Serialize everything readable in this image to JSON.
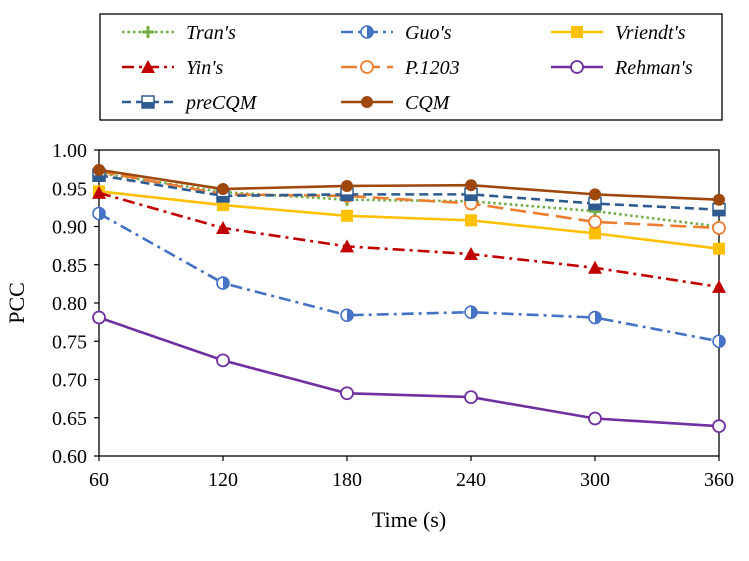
{
  "chart_data": {
    "type": "line",
    "xlabel": "Time (s)",
    "ylabel": "PCC",
    "xlim": [
      60,
      360
    ],
    "ylim": [
      0.6,
      1.0
    ],
    "x": [
      60,
      120,
      180,
      240,
      300,
      360
    ],
    "x_ticks": [
      "60",
      "120",
      "180",
      "240",
      "300",
      "360"
    ],
    "y_ticks": [
      "0.60",
      "0.65",
      "0.70",
      "0.75",
      "0.80",
      "0.85",
      "0.90",
      "0.95",
      "1.00"
    ],
    "grid": false,
    "legend_position": "top",
    "series": [
      {
        "name": "Tran's",
        "color": "#70AD47",
        "dash": "dot",
        "marker": "plus",
        "values": [
          0.97,
          0.945,
          0.935,
          0.933,
          0.92,
          0.9
        ]
      },
      {
        "name": "Guo's",
        "color": "#4472C4",
        "dash": "dashdot",
        "marker": "half-circle",
        "values": [
          0.917,
          0.826,
          0.784,
          0.788,
          0.781,
          0.75
        ]
      },
      {
        "name": "Vriendt's",
        "color": "#FFC000",
        "dash": "solid",
        "marker": "square",
        "values": [
          0.946,
          0.928,
          0.914,
          0.908,
          0.891,
          0.871
        ]
      },
      {
        "name": "Yin's",
        "color": "#C00000",
        "dash": "dashdot",
        "marker": "triangle",
        "values": [
          0.944,
          0.898,
          0.874,
          0.864,
          0.846,
          0.821
        ]
      },
      {
        "name": "P.1203",
        "color": "#ED7D31",
        "dash": "longdash",
        "marker": "open-circle",
        "values": [
          0.972,
          0.942,
          0.94,
          0.93,
          0.906,
          0.898
        ]
      },
      {
        "name": "Rehman's",
        "color": "#7030A0",
        "dash": "solid",
        "marker": "open-circle",
        "values": [
          0.781,
          0.725,
          0.682,
          0.677,
          0.649,
          0.639
        ]
      },
      {
        "name": "preCQM",
        "color": "#2E5C91",
        "dash": "dash",
        "marker": "half-square",
        "values": [
          0.967,
          0.94,
          0.942,
          0.942,
          0.93,
          0.922
        ]
      },
      {
        "name": "CQM",
        "color": "#9E480E",
        "dash": "solid",
        "marker": "filled-circle",
        "values": [
          0.974,
          0.949,
          0.953,
          0.954,
          0.942,
          0.935
        ]
      }
    ]
  }
}
